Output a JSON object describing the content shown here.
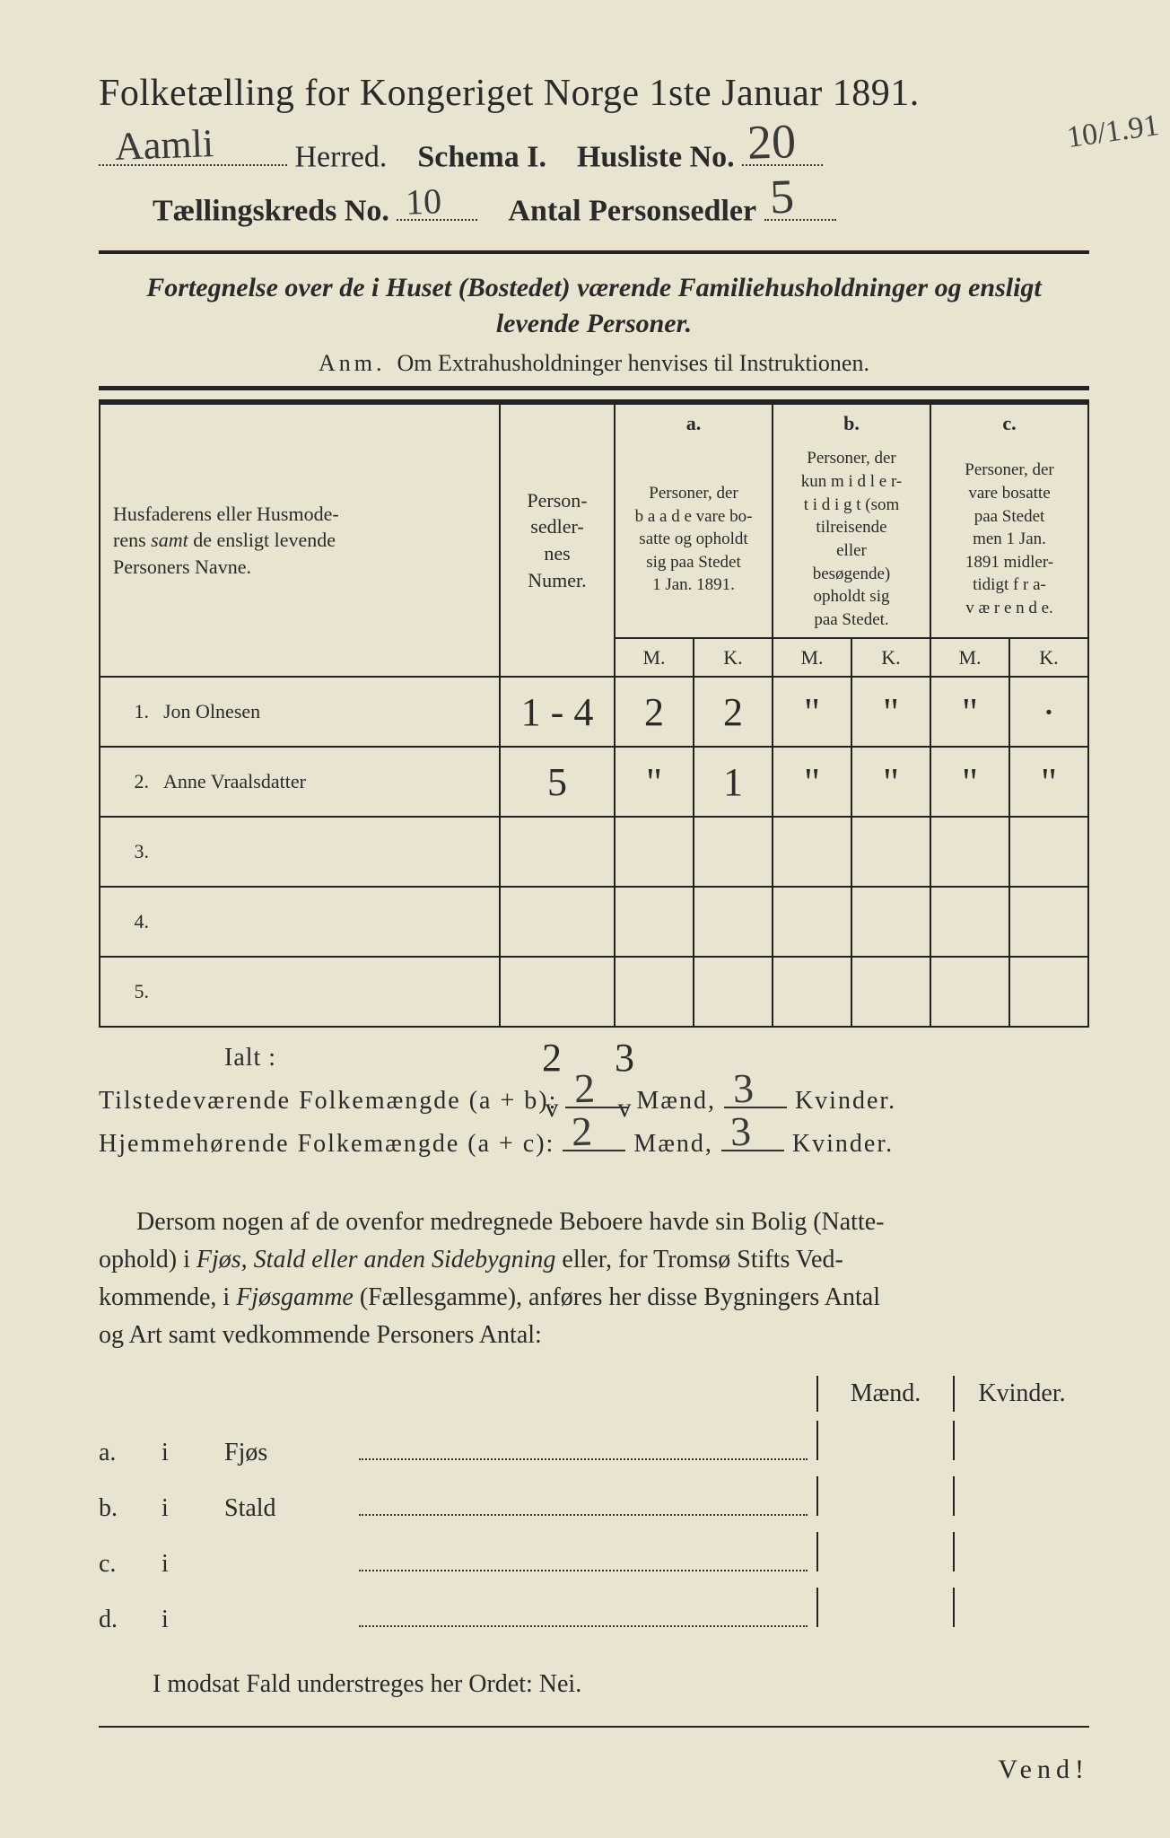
{
  "title": "Folketælling for Kongeriget Norge 1ste Januar 1891.",
  "header": {
    "herred_value": "Aamli",
    "herred_label": "Herred.",
    "schema_label": "Schema I.",
    "husliste_label": "Husliste No.",
    "husliste_value": "20",
    "kreds_label": "Tællingskreds No.",
    "kreds_value": "10",
    "antal_label": "Antal Personsedler",
    "antal_value": "5",
    "margin_note": "10/1.91"
  },
  "subtitle_line1": "Fortegnelse over de i Huset (Bostedet) værende Familiehusholdninger og ensligt",
  "subtitle_line2": "levende Personer.",
  "anm_label": "Anm.",
  "anm_text": "Om Extrahusholdninger henvises til Instruktionen.",
  "table": {
    "col_name_header": "Husfaderens eller Husmoderens samt de ensligt levende Personers Navne.",
    "col_person_header": "Person-sedler-nes Numer.",
    "a_label": "a.",
    "a_text": "Personer, der baade vare bosatte og opholdt sig paa Stedet 1 Jan. 1891.",
    "b_label": "b.",
    "b_text": "Personer, der kun midler-tidigt (som tilreisende eller besøgende) opholdt sig paa Stedet.",
    "c_label": "c.",
    "c_text": "Personer, der vare bosatte paa Stedet men 1 Jan. 1891 midler-tidigt fra-værende.",
    "M": "M.",
    "K": "K.",
    "rows": [
      {
        "n": "1.",
        "name": "Jon Olnesen",
        "person": "1 - 4",
        "aM": "2",
        "aK": "2",
        "bM": "\"",
        "bK": "\"",
        "cM": "\"",
        "cK": "·"
      },
      {
        "n": "2.",
        "name": "Anne Vraalsdatter",
        "person": "5",
        "aM": "\"",
        "aK": "1",
        "bM": "\"",
        "bK": "\"",
        "cM": "\"",
        "cK": "\""
      },
      {
        "n": "3.",
        "name": "",
        "person": "",
        "aM": "",
        "aK": "",
        "bM": "",
        "bK": "",
        "cM": "",
        "cK": ""
      },
      {
        "n": "4.",
        "name": "",
        "person": "",
        "aM": "",
        "aK": "",
        "bM": "",
        "bK": "",
        "cM": "",
        "cK": ""
      },
      {
        "n": "5.",
        "name": "",
        "person": "",
        "aM": "",
        "aK": "",
        "bM": "",
        "bK": "",
        "cM": "",
        "cK": ""
      }
    ]
  },
  "ialt": {
    "label": "Ialt :",
    "aM": "2",
    "aK": "3",
    "aM_check": "v",
    "aK_check": "v"
  },
  "summary": {
    "line1_label": "Tilstedeværende Folkemængde (a + b):",
    "line1_m": "2",
    "line1_k": "3",
    "line2_label": "Hjemmehørende Folkemængde (a + c):",
    "line2_m": "2",
    "line2_k": "3",
    "maend": "Mænd,",
    "kvinder": "Kvinder."
  },
  "para": "Dersom nogen af de ovenfor medregnede Beboere havde sin Bolig (Natte-ophold) i Fjøs, Stald eller anden Sidebygning eller, for Tromsø Stifts Ved-kommende, i Fjøsgamme (Fællesgamme), anføres her disse Bygningers Antal og Art samt vedkommende Personers Antal:",
  "bottom": {
    "maend": "Mænd.",
    "kvinder": "Kvinder.",
    "rows": [
      {
        "a": "a.",
        "i": "i",
        "label": "Fjøs"
      },
      {
        "a": "b.",
        "i": "i",
        "label": "Stald"
      },
      {
        "a": "c.",
        "i": "i",
        "label": ""
      },
      {
        "a": "d.",
        "i": "i",
        "label": ""
      }
    ]
  },
  "final": "I modsat Fald understreges her Ordet: Nei.",
  "vend": "Vend!"
}
